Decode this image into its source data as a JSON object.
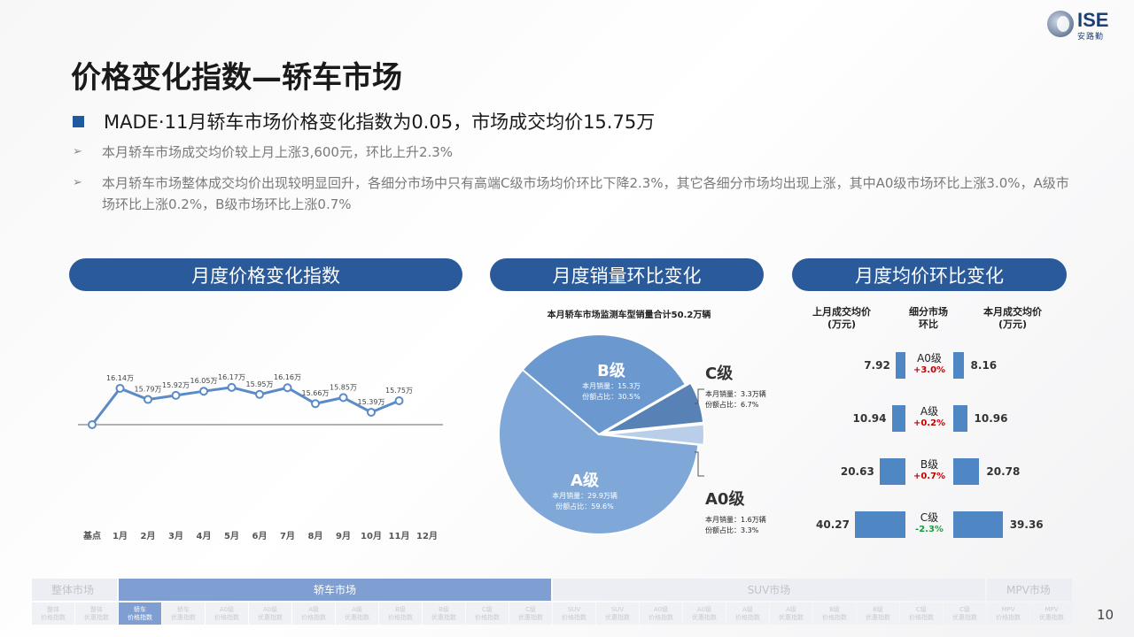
{
  "logo": {
    "text": "ISE",
    "sub": "安路勤"
  },
  "title": "价格变化指数—轿车市场",
  "bullet_main": "MADE·11月轿车市场价格变化指数为0.05，市场成交均价15.75万",
  "sub1": "本月轿车市场成交均价较上月上涨3,600元，环比上升2.3%",
  "sub2": "本月轿车市场整体成交均价出现较明显回升，各细分市场中只有高端C级市场均价环比下降2.3%，其它各细分市场均出现上涨，其中A0级市场环比上涨3.0%，A级市场环比上涨0.2%，B级市场环比上涨0.7%",
  "arrow": "➢",
  "pills": {
    "index": "月度价格变化指数",
    "sales": "月度销量环比变化",
    "avg": "月度均价环比变化"
  },
  "colors": {
    "primary": "#2a5a9a",
    "bar": "#4f86c4",
    "line": "#5b8bc6",
    "up": "#c00000",
    "down": "#1e9a3c"
  },
  "chart_data": [
    {
      "type": "line",
      "title": "月度价格变化指数",
      "categories": [
        "基点",
        "1月",
        "2月",
        "3月",
        "4月",
        "5月",
        "6月",
        "7月",
        "8月",
        "9月",
        "10月",
        "11月",
        "12月"
      ],
      "values": [
        null,
        16.14,
        15.79,
        15.92,
        16.05,
        16.17,
        15.95,
        16.16,
        15.66,
        15.85,
        15.39,
        15.75,
        null
      ],
      "labels": [
        "",
        "16.14万",
        "15.79万",
        "15.92万",
        "16.05万",
        "16.17万",
        "15.95万",
        "16.16万",
        "15.66万",
        "15.85万",
        "15.39万",
        "15.75万",
        ""
      ],
      "grid": false
    },
    {
      "type": "pie",
      "title": "本月轿车市场监测车型销量合计50.2万辆",
      "slices": [
        {
          "name": "A级",
          "value": 59.6,
          "sales": "29.9万辆",
          "share": "59.6%",
          "color": "#7fa8d8"
        },
        {
          "name": "B级",
          "value": 30.5,
          "sales": "15.3万",
          "share": "30.5%",
          "color": "#6a98cf"
        },
        {
          "name": "C级",
          "value": 6.7,
          "sales": "3.3万辆",
          "share": "6.7%",
          "color": "#5882b5"
        },
        {
          "name": "A0级",
          "value": 3.3,
          "sales": "1.6万辆",
          "share": "3.3%",
          "color": "#b9cfe9"
        }
      ],
      "sales_label": "本月销量：",
      "share_label": "份额占比："
    },
    {
      "type": "bar",
      "title": "月度均价环比变化",
      "headers": {
        "left": [
          "上月成交均价",
          "(万元)"
        ],
        "mid": [
          "细分市场",
          "环比"
        ],
        "right": [
          "本月成交均价",
          "(万元)"
        ]
      },
      "rows": [
        {
          "segment": "A0级",
          "prev": 7.92,
          "prev_label": "7.92",
          "curr": 8.16,
          "curr_label": "8.16",
          "change": "+3.0%",
          "dir": "up"
        },
        {
          "segment": "A级",
          "prev": 10.94,
          "prev_label": "10.94",
          "curr": 10.96,
          "curr_label": "10.96",
          "change": "+0.2%",
          "dir": "up"
        },
        {
          "segment": "B级",
          "prev": 20.63,
          "prev_label": "20.63",
          "curr": 20.78,
          "curr_label": "20.78",
          "change": "+0.7%",
          "dir": "up"
        },
        {
          "segment": "C级",
          "prev": 40.27,
          "prev_label": "40.27",
          "curr": 39.36,
          "curr_label": "39.36",
          "change": "-2.3%",
          "dir": "down"
        }
      ]
    }
  ],
  "nav": {
    "groups": [
      "整体市场",
      "轿车市场",
      "SUV市场",
      "MPV市场"
    ],
    "active_group": 1,
    "subs": [
      [
        "整体",
        "价格指数"
      ],
      [
        "整体",
        "优惠指数"
      ],
      [
        "轿车",
        "价格指数"
      ],
      [
        "轿车",
        "优惠指数"
      ],
      [
        "A0级",
        "价格指数"
      ],
      [
        "A0级",
        "优惠指数"
      ],
      [
        "A级",
        "价格指数"
      ],
      [
        "A级",
        "优惠指数"
      ],
      [
        "B级",
        "价格指数"
      ],
      [
        "B级",
        "优惠指数"
      ],
      [
        "C级",
        "价格指数"
      ],
      [
        "C级",
        "优惠指数"
      ],
      [
        "SUV",
        "价格指数"
      ],
      [
        "SUV",
        "优惠指数"
      ],
      [
        "A0级",
        "价格指数"
      ],
      [
        "A0级",
        "优惠指数"
      ],
      [
        "A级",
        "价格指数"
      ],
      [
        "A级",
        "优惠指数"
      ],
      [
        "B级",
        "价格指数"
      ],
      [
        "B级",
        "优惠指数"
      ],
      [
        "C级",
        "价格指数"
      ],
      [
        "C级",
        "优惠指数"
      ],
      [
        "MPV",
        "价格指数"
      ],
      [
        "MPV",
        "优惠指数"
      ]
    ],
    "active_sub": 2
  },
  "page_number": "10"
}
